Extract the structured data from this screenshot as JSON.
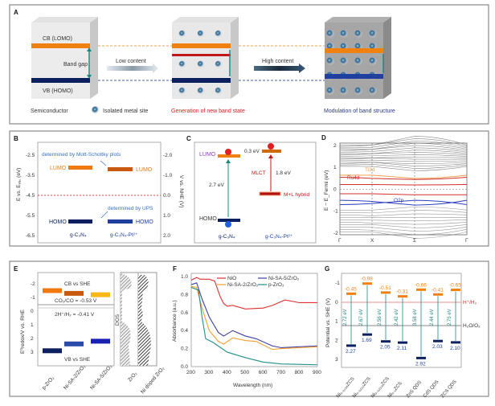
{
  "panel_a": {
    "label": "A",
    "cb": "CB (LOMO)",
    "vb": "VB (HOMO)",
    "band_gap": "Band gap",
    "semiconductor": "Semiconductor",
    "metal_site": "Isolated metal site",
    "low": "Low content",
    "high": "High content",
    "gen": "Generation of new band state",
    "mod": "Modulation of band structure",
    "colors": {
      "cb": "#f08010",
      "vb": "#0c2060",
      "new": "#c01818",
      "arrow": "#1a8a80"
    }
  },
  "panel_b": {
    "label": "B",
    "left_ticks": [
      "-2.5",
      "-3.5",
      "-4.5",
      "-5.5",
      "-6.5"
    ],
    "right_ticks": [
      "-2.0",
      "-1.0",
      "0.0",
      "1.0",
      "2.0"
    ],
    "ylabel_left": "E vs. Eᵥₐ꜀ (eV)",
    "ylabel_right": "V vs. NHE (V)",
    "note_ms": "determined by Mott-Schottky plots",
    "note_ups": "determined by UPS",
    "lumo": "LUMO",
    "homo": "HOMO",
    "x1": "g-C₃N₄",
    "x2": "g-C₃N₄-Pt²⁺",
    "levels": {
      "lumo": [
        -3.1,
        -3.2
      ],
      "homo": [
        -5.8,
        -5.8
      ],
      "reference": -4.5
    }
  },
  "panel_c": {
    "label": "C",
    "lumo": "LUMO",
    "homo": "HOMO",
    "gap": "2.7 eV",
    "offset": "0.3 eV",
    "mlct": "MLCT",
    "mlct_gap": "1.8 eV",
    "hybrid": "M+L hybrid",
    "x1": "g-C₃N₄",
    "x2": "g-C₃N₄-Pt²⁺",
    "e": "e⁻",
    "h": "h⁺"
  },
  "panel_d": {
    "label": "D",
    "ylabel": "E − E_Fermi (eV)",
    "y_ticks": [
      "2",
      "1",
      "0",
      "-1",
      "-2"
    ],
    "k_points": [
      "Γ",
      "X",
      "Σ",
      "Γ"
    ],
    "ti": "Ti3d",
    "ru": "Ru4d",
    "o": "O2p"
  },
  "panel_e": {
    "label": "E",
    "ylabel": "E⁰redox/V vs. RHE",
    "y_ticks": [
      "-2",
      "-1",
      "0",
      "1",
      "2",
      "3"
    ],
    "cb_title": "CB vs SHE",
    "vb_title": "VB vs SHE",
    "co2": "CO₂/CO = -0.53 V",
    "h2": "2H⁺/H₂ = -0.41 V",
    "dos": "DOS",
    "categories": [
      "p-ZrO₂",
      "Ni-SA-2/ZrO₂",
      "Ni-SA-5/ZrO₂"
    ],
    "cb": [
      -1.5,
      -1.3,
      -1.2
    ],
    "vb": [
      2.9,
      2.4,
      2.2
    ],
    "dos_labels": [
      "ZrO₂",
      "Ni doped ZrO₂"
    ]
  },
  "chart_data": {
    "type": "line",
    "xlabel": "Wavelength (nm)",
    "ylabel": "Absorbance (a.u.)",
    "xlim": [
      200,
      900
    ],
    "ylim": [
      0,
      1.05
    ],
    "x_ticks": [
      "200",
      "300",
      "400",
      "500",
      "600",
      "700",
      "800",
      "900"
    ],
    "y_ticks": [
      "0.0",
      "0.2",
      "0.4",
      "0.6",
      "0.8",
      "1.0"
    ],
    "legend": "top-right",
    "series": [
      {
        "name": "NiO",
        "color": "#e03030",
        "points": [
          [
            200,
            0.96
          ],
          [
            230,
            0.99
          ],
          [
            250,
            0.97
          ],
          [
            300,
            0.97
          ],
          [
            330,
            0.95
          ],
          [
            360,
            0.78
          ],
          [
            380,
            0.7
          ],
          [
            400,
            0.67
          ],
          [
            430,
            0.68
          ],
          [
            500,
            0.64
          ],
          [
            600,
            0.65
          ],
          [
            650,
            0.68
          ],
          [
            720,
            0.74
          ],
          [
            800,
            0.71
          ],
          [
            900,
            0.71
          ]
        ]
      },
      {
        "name": "Ni-SA-5/ZrO₂",
        "color": "#4040a0",
        "points": [
          [
            200,
            0.91
          ],
          [
            230,
            0.93
          ],
          [
            260,
            0.75
          ],
          [
            300,
            0.55
          ],
          [
            350,
            0.38
          ],
          [
            380,
            0.34
          ],
          [
            430,
            0.4
          ],
          [
            500,
            0.34
          ],
          [
            560,
            0.31
          ],
          [
            650,
            0.23
          ],
          [
            700,
            0.21
          ],
          [
            800,
            0.22
          ],
          [
            900,
            0.23
          ]
        ]
      },
      {
        "name": "Ni-SA-2/ZrO₂",
        "color": "#f0a030",
        "points": [
          [
            200,
            0.89
          ],
          [
            230,
            0.88
          ],
          [
            260,
            0.65
          ],
          [
            300,
            0.4
          ],
          [
            350,
            0.28
          ],
          [
            380,
            0.25
          ],
          [
            430,
            0.32
          ],
          [
            500,
            0.29
          ],
          [
            560,
            0.28
          ],
          [
            650,
            0.19
          ],
          [
            700,
            0.2
          ],
          [
            800,
            0.21
          ],
          [
            900,
            0.22
          ]
        ]
      },
      {
        "name": "p-ZrO₂",
        "color": "#20908a",
        "points": [
          [
            200,
            0.88
          ],
          [
            240,
            0.85
          ],
          [
            260,
            0.55
          ],
          [
            280,
            0.31
          ],
          [
            320,
            0.27
          ],
          [
            400,
            0.16
          ],
          [
            500,
            0.1
          ],
          [
            600,
            0.05
          ],
          [
            700,
            0.03
          ],
          [
            900,
            0.02
          ]
        ]
      }
    ]
  },
  "panel_f": {
    "label": "F"
  },
  "panel_g": {
    "label": "G",
    "ylabel": "Potential vs. SHE (V)",
    "y_ticks": [
      "-1",
      "0",
      "1",
      "2",
      "3"
    ],
    "h_line": "H⁺/H₂",
    "o_line": "H₂O/O₂",
    "categories": [
      "Ni₀.₀₁₉₆ZCS",
      "Ni₀.₀₂₃₂ZCS",
      "Ni₀.₀₃₃₃ZCS",
      "Ni₀.₁ZCS",
      "ZnS QDS",
      "CdS QDS",
      "ZCS QDS"
    ],
    "cb": [
      "-0.45",
      "-0.98",
      "-0.51",
      "-0.31",
      "-0.66",
      "-0.41",
      "-0.65"
    ],
    "vb": [
      "2.27",
      "1.69",
      "2.05",
      "2.11",
      "2.92",
      "2.03",
      "2.10"
    ],
    "gap": [
      "2.72 eV",
      "2.67 eV",
      "2.56 eV",
      "2.42 eV",
      "3.58 eV",
      "2.44 eV",
      "2.75 eV"
    ]
  }
}
